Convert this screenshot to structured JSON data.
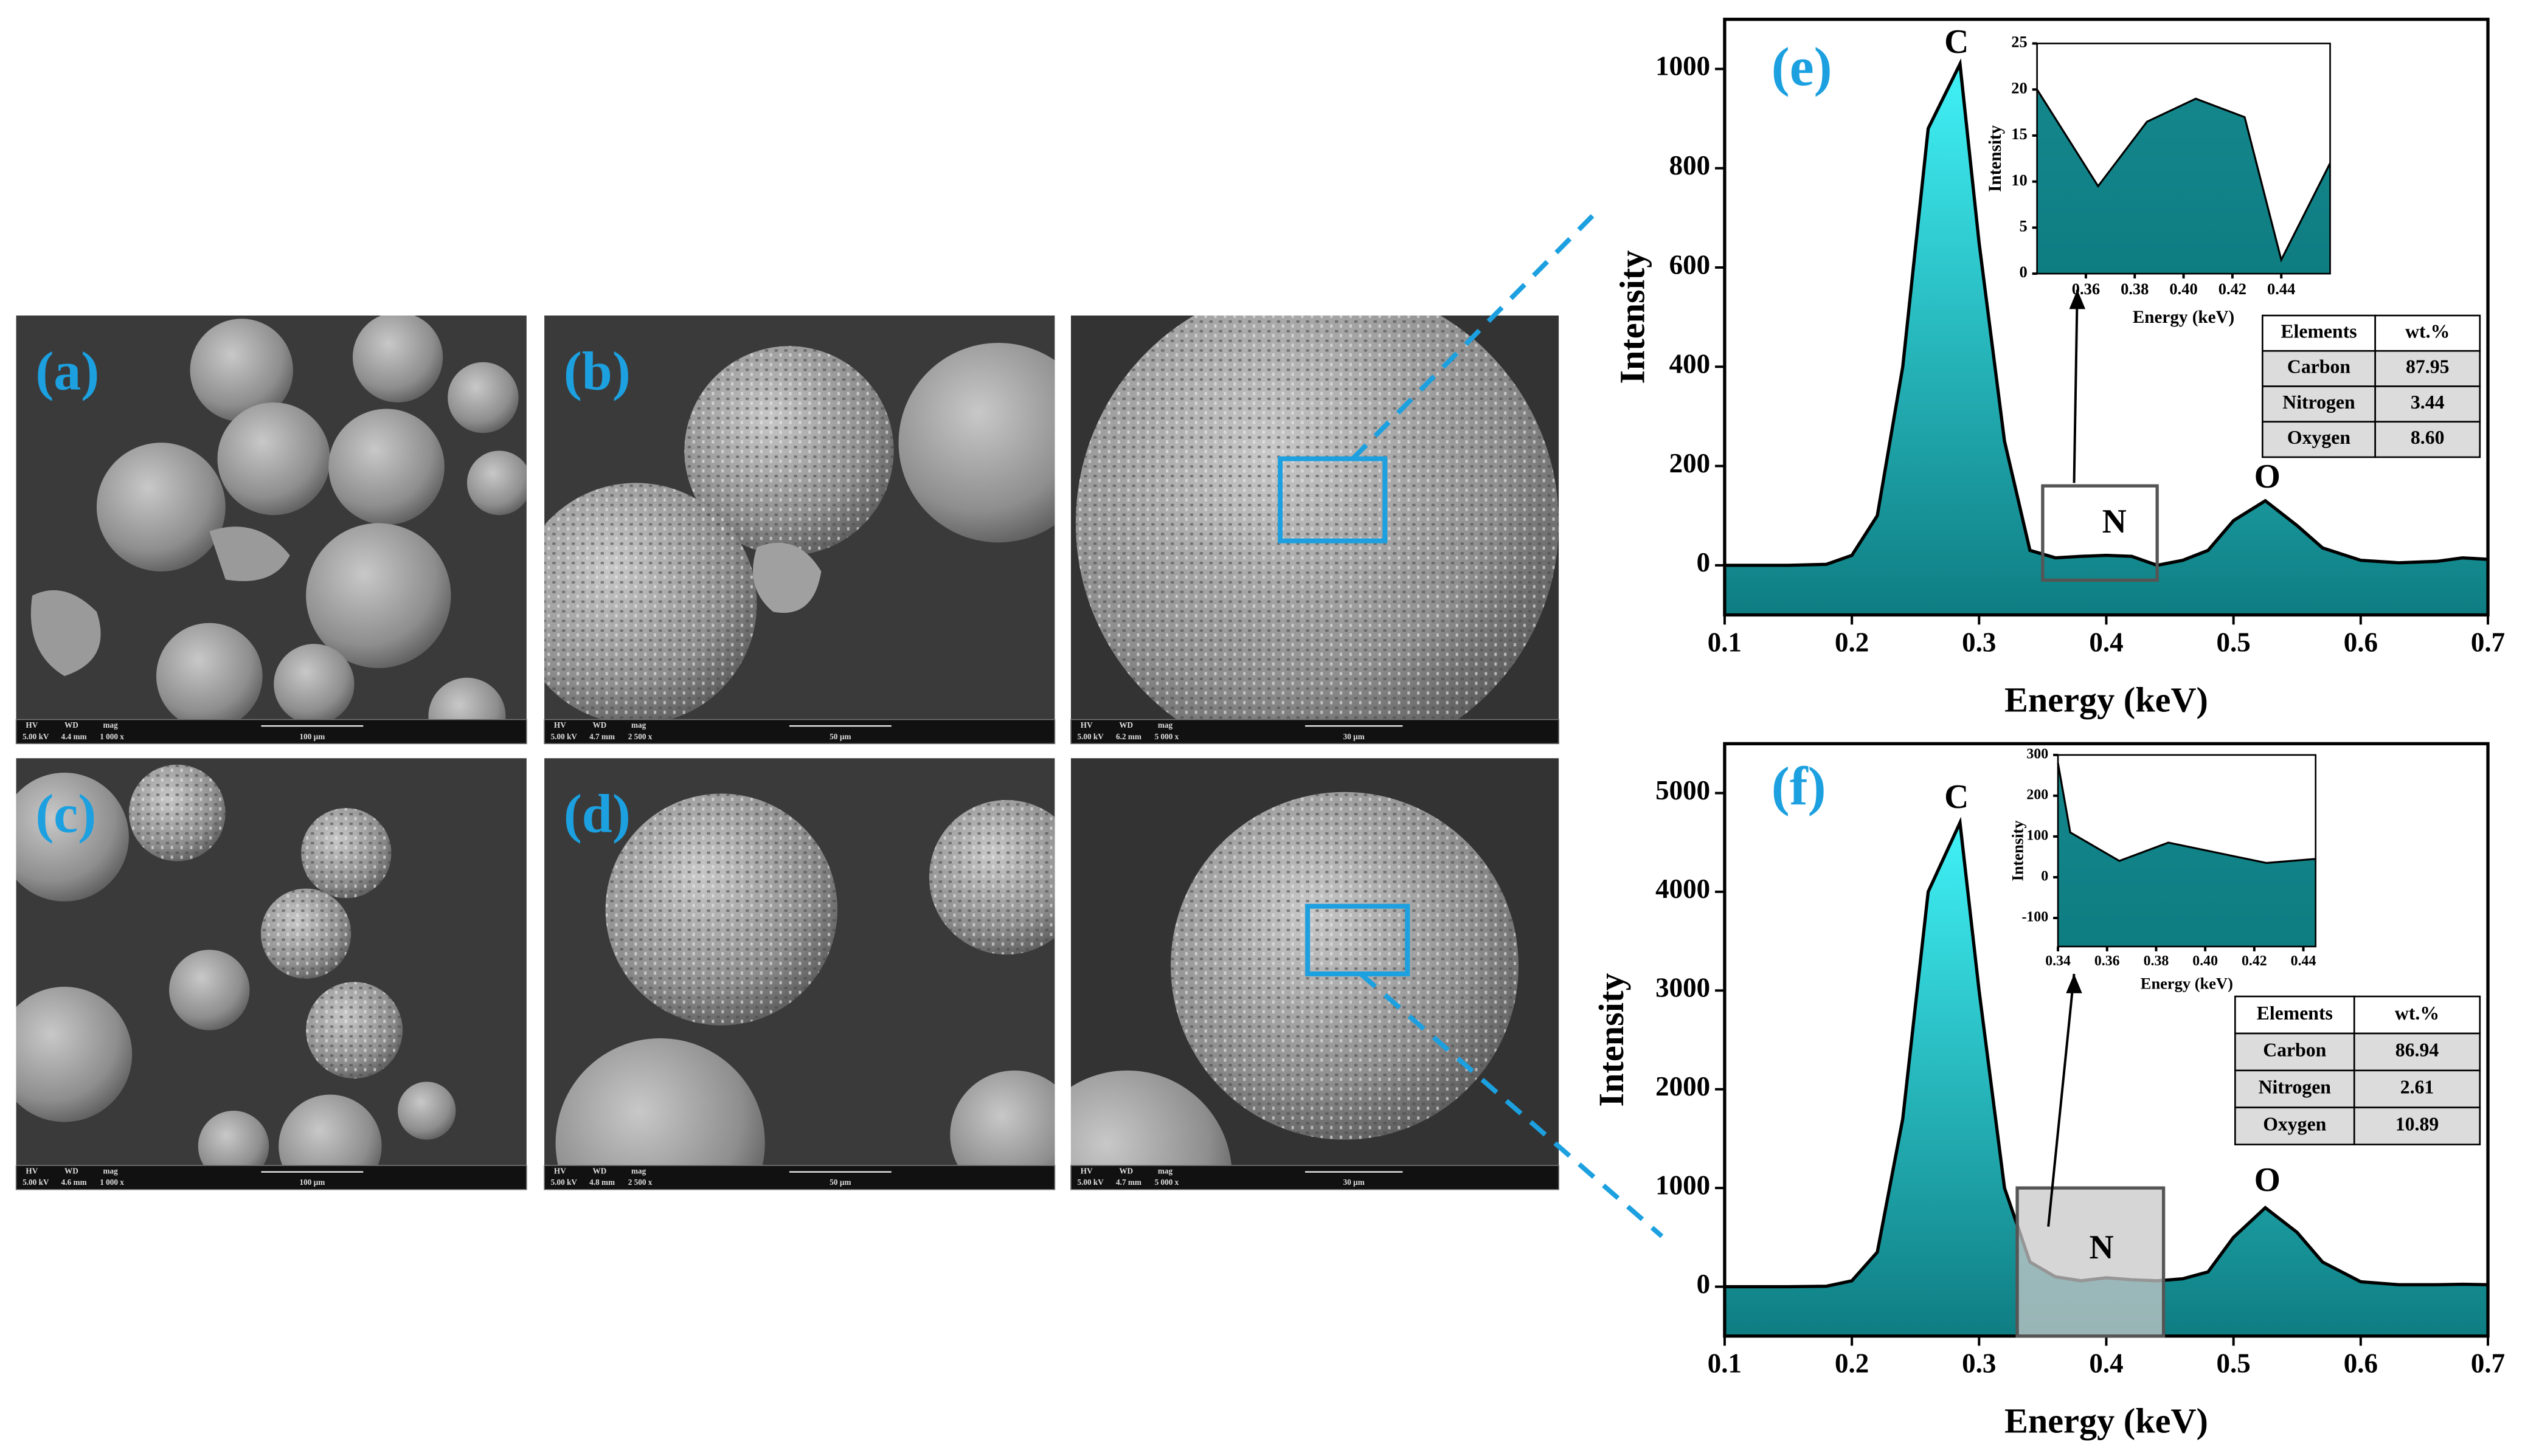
{
  "sem_info_headers": [
    "HV",
    "WD",
    "mag"
  ],
  "sem_panels": [
    {
      "label": "(a)",
      "hv": "5.00 kV",
      "wd": "4.4 mm",
      "mag": "1 000 x",
      "scale": "100 µm"
    },
    {
      "label": "(b)",
      "hv": "5.00 kV",
      "wd": "4.7 mm",
      "mag": "2 500 x",
      "scale": "50 µm"
    },
    {
      "hv": "5.00 kV",
      "wd": "6.2 mm",
      "mag": "5 000 x",
      "scale": "30 µm"
    },
    {
      "label": "(c)",
      "hv": "5.00 kV",
      "wd": "4.6 mm",
      "mag": "1 000 x",
      "scale": "100 µm"
    },
    {
      "label": "(d)",
      "hv": "5.00 kV",
      "wd": "4.8 mm",
      "mag": "2 500 x",
      "scale": "50 µm"
    },
    {
      "hv": "5.00 kV",
      "wd": "4.7 mm",
      "mag": "5 000 x",
      "scale": "30 µm"
    }
  ],
  "chart_data": [
    {
      "type": "area",
      "panel_label": "(e)",
      "xlabel": "Energy (keV)",
      "ylabel": "Intensity",
      "x": [
        0.1,
        0.15,
        0.18,
        0.2,
        0.22,
        0.24,
        0.26,
        0.285,
        0.3,
        0.32,
        0.34,
        0.36,
        0.38,
        0.4,
        0.42,
        0.44,
        0.46,
        0.48,
        0.5,
        0.525,
        0.55,
        0.57,
        0.6,
        0.63,
        0.66,
        0.68,
        0.7
      ],
      "values": [
        0,
        0,
        2,
        20,
        100,
        400,
        880,
        1010,
        650,
        250,
        30,
        15,
        18,
        20,
        18,
        0,
        10,
        30,
        90,
        130,
        80,
        35,
        10,
        5,
        8,
        15,
        12
      ],
      "gradient": [
        "#40f2f7",
        "#0e7d82"
      ],
      "xlim": [
        0.1,
        0.7
      ],
      "ylim": [
        -100,
        1100
      ],
      "xticks": [
        0.1,
        0.2,
        0.3,
        0.4,
        0.5,
        0.6,
        0.7
      ],
      "yticks": [
        0,
        200,
        400,
        600,
        800,
        1000
      ],
      "annotations": [
        "C",
        "N",
        "O"
      ],
      "table": {
        "header": [
          "Elements",
          "wt.%"
        ],
        "rows": [
          [
            "Carbon",
            "87.95"
          ],
          [
            "Nitrogen",
            "3.44"
          ],
          [
            "Oxygen",
            "8.60"
          ]
        ]
      }
    },
    {
      "type": "area",
      "xlabel": "Energy (keV)",
      "ylabel": "Intensity",
      "x": [
        0.34,
        0.365,
        0.385,
        0.405,
        0.425,
        0.44,
        0.46
      ],
      "values": [
        20,
        9.5,
        16.5,
        19,
        17,
        1.5,
        12
      ],
      "gradient": [
        "#14878c",
        "#0e7d82"
      ],
      "xlim": [
        0.34,
        0.46
      ],
      "ylim": [
        0,
        25
      ],
      "xticks": [
        0.36,
        0.38,
        {
          "value": 0.4,
          "label": "0.40"
        },
        0.42,
        0.44
      ],
      "yticks": [
        0,
        5,
        10,
        15,
        20,
        25
      ]
    },
    {
      "type": "area",
      "panel_label": "(f)",
      "xlabel": "Energy (keV)",
      "ylabel": "Intensity",
      "x": [
        0.1,
        0.15,
        0.18,
        0.2,
        0.22,
        0.24,
        0.26,
        0.285,
        0.3,
        0.32,
        0.34,
        0.36,
        0.38,
        0.4,
        0.42,
        0.44,
        0.46,
        0.48,
        0.5,
        0.525,
        0.55,
        0.57,
        0.6,
        0.63,
        0.66,
        0.68,
        0.7
      ],
      "values": [
        0,
        0,
        5,
        60,
        350,
        1700,
        4000,
        4700,
        3000,
        1000,
        250,
        100,
        60,
        90,
        70,
        60,
        80,
        150,
        500,
        800,
        550,
        250,
        50,
        20,
        20,
        25,
        20
      ],
      "gradient": [
        "#40f2f7",
        "#0e7d82"
      ],
      "xlim": [
        0.1,
        0.7
      ],
      "ylim": [
        -500,
        5500
      ],
      "xticks": [
        0.1,
        0.2,
        0.3,
        0.4,
        0.5,
        0.6,
        0.7
      ],
      "yticks": [
        0,
        1000,
        2000,
        3000,
        4000,
        5000
      ],
      "annotations": [
        "C",
        "N",
        "O"
      ],
      "table": {
        "header": [
          "Elements",
          "wt.%"
        ],
        "rows": [
          [
            "Carbon",
            "86.94"
          ],
          [
            "Nitrogen",
            "2.61"
          ],
          [
            "Oxygen",
            "10.89"
          ]
        ]
      }
    },
    {
      "type": "area",
      "xlabel": "Energy (keV)",
      "ylabel": "Intensity",
      "x": [
        0.34,
        0.345,
        0.365,
        0.385,
        0.405,
        0.425,
        0.445
      ],
      "values": [
        280,
        110,
        40,
        85,
        60,
        35,
        45
      ],
      "gradient": [
        "#14878c",
        "#0e7d82"
      ],
      "xlim": [
        0.34,
        0.445
      ],
      "ylim": [
        -170,
        300
      ],
      "xticks": [
        0.34,
        0.36,
        0.38,
        {
          "value": 0.4,
          "label": "0.40"
        },
        0.42,
        0.44
      ],
      "yticks": [
        -100,
        0,
        100,
        200,
        300
      ]
    }
  ]
}
